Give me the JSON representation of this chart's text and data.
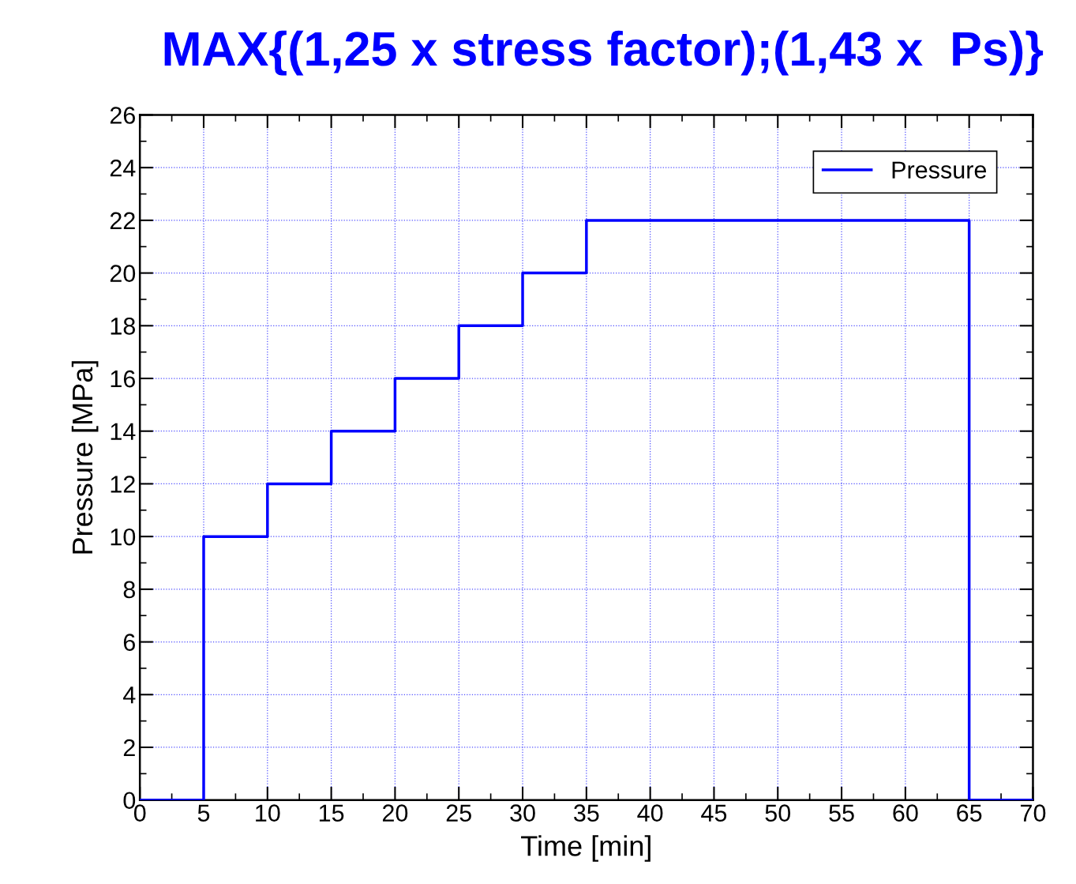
{
  "chart_data": {
    "type": "step",
    "title": "MAX{(1,25 x stress factor);(1,43 x  Ps)}",
    "xlabel": "Time [min]",
    "ylabel": "Pressure [MPa]",
    "x": [
      0,
      5,
      10,
      15,
      20,
      25,
      30,
      35,
      65,
      70
    ],
    "series": [
      {
        "name": "Pressure",
        "color": "#0000ff",
        "values": [
          0,
          10,
          12,
          14,
          16,
          18,
          20,
          22,
          0,
          0
        ]
      }
    ],
    "xlim": [
      0,
      70
    ],
    "ylim": [
      0,
      26
    ],
    "xticks": [
      0,
      5,
      10,
      15,
      20,
      25,
      30,
      35,
      40,
      45,
      50,
      55,
      60,
      65,
      70
    ],
    "yticks": [
      0,
      2,
      4,
      6,
      8,
      10,
      12,
      14,
      16,
      18,
      20,
      22,
      24,
      26
    ],
    "grid": true,
    "legend": "top right",
    "line_style": "solid",
    "marker": "none"
  }
}
